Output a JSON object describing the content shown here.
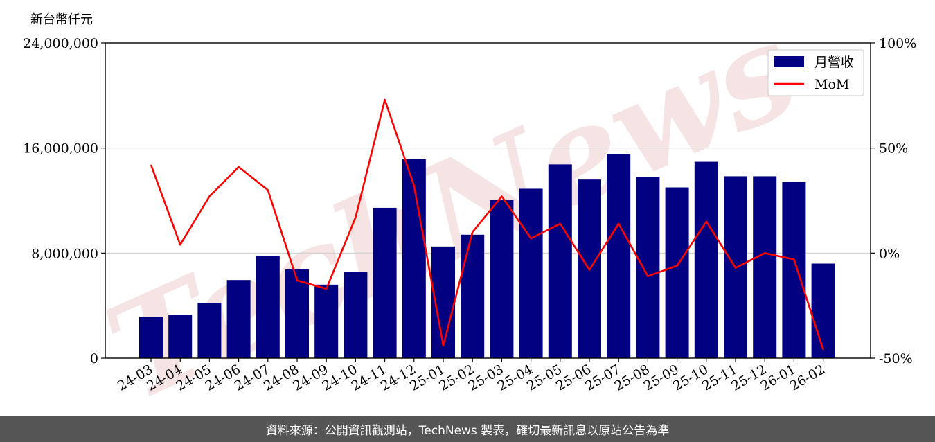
{
  "footer": {
    "source_text": "資料來源：公開資訊觀測站，TechNews 製表，確切最新訊息以原站公告為準"
  },
  "watermark": {
    "text": "TechNews",
    "color": "#f3d9d9"
  },
  "colors": {
    "bar": "#000080",
    "line": "#ff0000",
    "grid": "#d0d0d0"
  },
  "chart_data": {
    "type": "bar",
    "ylabel": "新台幣仟元",
    "ylim": [
      0,
      24000000
    ],
    "y_ticks": [
      0,
      8000000,
      16000000,
      24000000
    ],
    "y_tick_labels": [
      "0",
      "8,000,000",
      "16,000,000",
      "24,000,000"
    ],
    "y2lim": [
      -0.5,
      1.0
    ],
    "y2_ticks": [
      -0.5,
      0,
      0.5,
      1.0
    ],
    "y2_tick_labels": [
      "-50%",
      "0%",
      "50%",
      "100%"
    ],
    "grid": "horizontal",
    "legend_position": "top-right",
    "categories": [
      "24-03",
      "24-04",
      "24-05",
      "24-06",
      "24-07",
      "24-08",
      "24-09",
      "24-10",
      "24-11",
      "24-12",
      "25-01",
      "25-02",
      "25-03",
      "25-04",
      "25-05",
      "25-06",
      "25-07",
      "25-08",
      "25-09",
      "25-10",
      "25-11",
      "25-12",
      "26-01",
      "26-02"
    ],
    "series": [
      {
        "name": "月營收",
        "type": "bar",
        "axis": "left",
        "values": [
          3150000,
          3300000,
          4200000,
          5950000,
          7800000,
          6750000,
          5600000,
          6550000,
          11450000,
          15150000,
          8500000,
          9400000,
          12050000,
          12900000,
          14750000,
          13600000,
          15550000,
          13800000,
          13000000,
          14950000,
          13850000,
          13850000,
          13400000,
          7200000
        ]
      },
      {
        "name": "MoM",
        "type": "line",
        "axis": "right",
        "values": [
          0.42,
          0.04,
          0.27,
          0.41,
          0.3,
          -0.13,
          -0.17,
          0.17,
          0.73,
          0.32,
          -0.44,
          0.1,
          0.27,
          0.07,
          0.14,
          -0.08,
          0.14,
          -0.11,
          -0.06,
          0.15,
          -0.07,
          0.0,
          -0.03,
          -0.46
        ]
      }
    ]
  }
}
